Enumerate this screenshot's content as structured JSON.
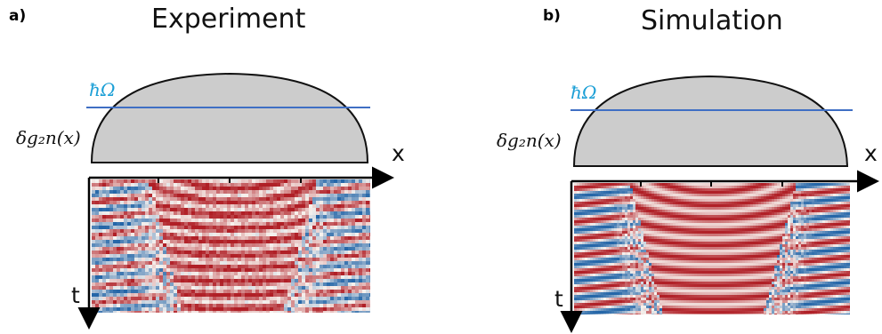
{
  "panels": [
    {
      "tag": "a)",
      "title": "Experiment",
      "energy_label": "ħΩ",
      "potential_label": "δg₂n(x)",
      "x_axis": "x",
      "t_axis": "t"
    },
    {
      "tag": "b)",
      "title": "Simulation",
      "energy_label": "ħΩ",
      "potential_label": "δg₂n(x)",
      "x_axis": "x",
      "t_axis": "t"
    }
  ],
  "colors": {
    "red": "#b01f26",
    "blue": "#2466a8",
    "white": "#f7f2ee",
    "potential_fill": "#cccccc",
    "energy_line": "#3f6fc4"
  }
}
